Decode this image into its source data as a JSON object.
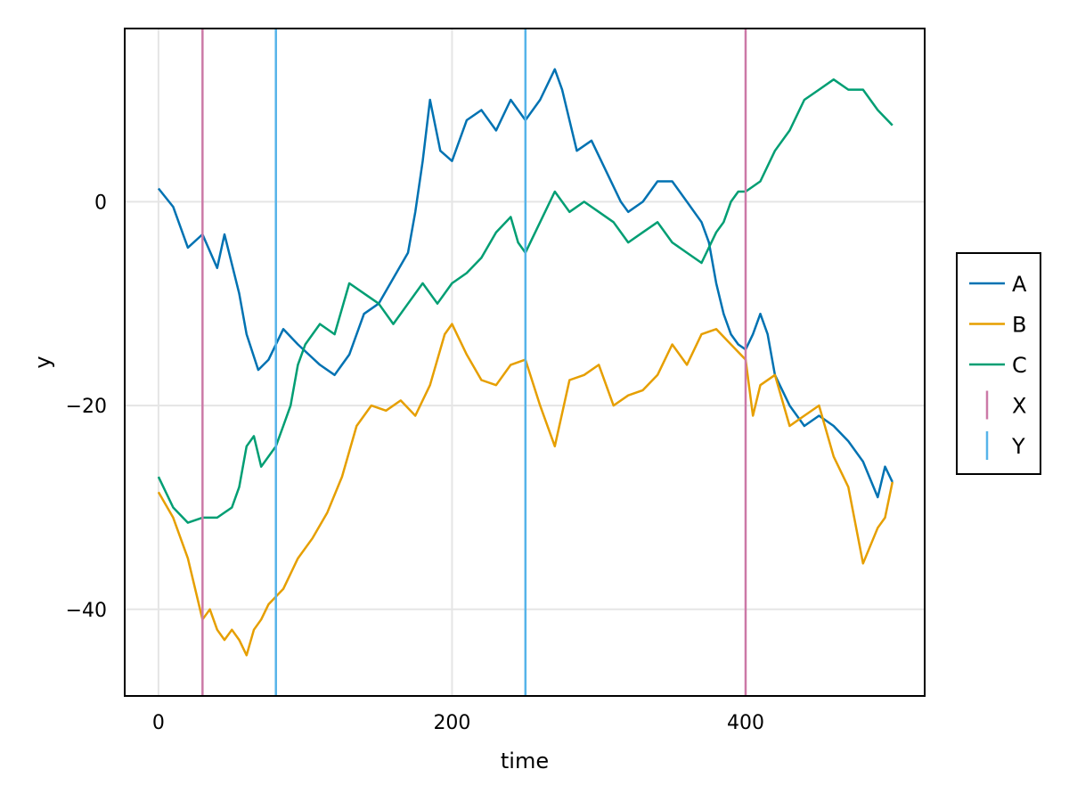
{
  "chart_data": {
    "type": "line",
    "title": "",
    "xlabel": "time",
    "ylabel": "y",
    "xlim": [
      -23,
      522
    ],
    "ylim": [
      -48.5,
      17
    ],
    "xticks": [
      0,
      200,
      400
    ],
    "yticks": [
      0,
      -20,
      -40
    ],
    "xtick_labels": [
      "0",
      "200",
      "400"
    ],
    "ytick_labels": [
      "0",
      "−20",
      "−40"
    ],
    "grid": true,
    "legend_position": "right",
    "series": [
      {
        "name": "A",
        "color": "#0072B2",
        "points": [
          [
            0,
            1.3
          ],
          [
            10,
            -0.5
          ],
          [
            20,
            -4.5
          ],
          [
            30,
            -3.2
          ],
          [
            40,
            -6.5
          ],
          [
            45,
            -3.2
          ],
          [
            55,
            -9
          ],
          [
            60,
            -13
          ],
          [
            68,
            -16.5
          ],
          [
            75,
            -15.5
          ],
          [
            85,
            -12.5
          ],
          [
            95,
            -14
          ],
          [
            110,
            -16
          ],
          [
            120,
            -17
          ],
          [
            130,
            -15
          ],
          [
            140,
            -11
          ],
          [
            150,
            -10
          ],
          [
            160,
            -7.5
          ],
          [
            170,
            -5
          ],
          [
            175,
            -1
          ],
          [
            180,
            4
          ],
          [
            185,
            10
          ],
          [
            192,
            5
          ],
          [
            200,
            4
          ],
          [
            210,
            8
          ],
          [
            220,
            9
          ],
          [
            230,
            7
          ],
          [
            240,
            10
          ],
          [
            250,
            8
          ],
          [
            260,
            10
          ],
          [
            270,
            13
          ],
          [
            275,
            11
          ],
          [
            285,
            5
          ],
          [
            295,
            6
          ],
          [
            305,
            3
          ],
          [
            315,
            0
          ],
          [
            320,
            -1
          ],
          [
            330,
            0
          ],
          [
            340,
            2
          ],
          [
            350,
            2
          ],
          [
            360,
            0
          ],
          [
            370,
            -2
          ],
          [
            375,
            -4
          ],
          [
            380,
            -8
          ],
          [
            385,
            -11
          ],
          [
            390,
            -13
          ],
          [
            395,
            -14
          ],
          [
            400,
            -14.5
          ],
          [
            405,
            -13
          ],
          [
            410,
            -11
          ],
          [
            415,
            -13
          ],
          [
            420,
            -17
          ],
          [
            430,
            -20
          ],
          [
            440,
            -22
          ],
          [
            450,
            -21
          ],
          [
            460,
            -22
          ],
          [
            470,
            -23.5
          ],
          [
            480,
            -25.5
          ],
          [
            490,
            -29
          ],
          [
            495,
            -26
          ],
          [
            500,
            -27.5
          ]
        ]
      },
      {
        "name": "B",
        "color": "#E69F00",
        "points": [
          [
            0,
            -28.5
          ],
          [
            10,
            -31
          ],
          [
            20,
            -35
          ],
          [
            30,
            -41
          ],
          [
            35,
            -40
          ],
          [
            40,
            -42
          ],
          [
            45,
            -43
          ],
          [
            50,
            -42
          ],
          [
            55,
            -43
          ],
          [
            60,
            -44.5
          ],
          [
            65,
            -42
          ],
          [
            70,
            -41
          ],
          [
            75,
            -39.5
          ],
          [
            85,
            -38
          ],
          [
            95,
            -35
          ],
          [
            105,
            -33
          ],
          [
            115,
            -30.5
          ],
          [
            125,
            -27
          ],
          [
            135,
            -22
          ],
          [
            145,
            -20
          ],
          [
            155,
            -20.5
          ],
          [
            165,
            -19.5
          ],
          [
            175,
            -21
          ],
          [
            185,
            -18
          ],
          [
            195,
            -13
          ],
          [
            200,
            -12
          ],
          [
            210,
            -15
          ],
          [
            220,
            -17.5
          ],
          [
            230,
            -18
          ],
          [
            240,
            -16
          ],
          [
            250,
            -15.5
          ],
          [
            260,
            -20
          ],
          [
            270,
            -24
          ],
          [
            280,
            -17.5
          ],
          [
            290,
            -17
          ],
          [
            300,
            -16
          ],
          [
            310,
            -20
          ],
          [
            320,
            -19
          ],
          [
            330,
            -18.5
          ],
          [
            340,
            -17
          ],
          [
            350,
            -14
          ],
          [
            360,
            -16
          ],
          [
            370,
            -13
          ],
          [
            380,
            -12.5
          ],
          [
            390,
            -14
          ],
          [
            400,
            -15.5
          ],
          [
            405,
            -21
          ],
          [
            410,
            -18
          ],
          [
            420,
            -17
          ],
          [
            430,
            -22
          ],
          [
            440,
            -21
          ],
          [
            450,
            -20
          ],
          [
            460,
            -25
          ],
          [
            470,
            -28
          ],
          [
            480,
            -35.5
          ],
          [
            490,
            -32
          ],
          [
            495,
            -31
          ],
          [
            500,
            -27.5
          ]
        ]
      },
      {
        "name": "C",
        "color": "#009E73",
        "points": [
          [
            0,
            -27
          ],
          [
            10,
            -30
          ],
          [
            20,
            -31.5
          ],
          [
            30,
            -31
          ],
          [
            40,
            -31
          ],
          [
            50,
            -30
          ],
          [
            55,
            -28
          ],
          [
            60,
            -24
          ],
          [
            65,
            -23
          ],
          [
            70,
            -26
          ],
          [
            80,
            -24
          ],
          [
            85,
            -22
          ],
          [
            90,
            -20
          ],
          [
            95,
            -16
          ],
          [
            100,
            -14
          ],
          [
            110,
            -12
          ],
          [
            120,
            -13
          ],
          [
            130,
            -8
          ],
          [
            140,
            -9
          ],
          [
            150,
            -10
          ],
          [
            160,
            -12
          ],
          [
            170,
            -10
          ],
          [
            180,
            -8
          ],
          [
            190,
            -10
          ],
          [
            200,
            -8
          ],
          [
            210,
            -7
          ],
          [
            220,
            -5.5
          ],
          [
            230,
            -3
          ],
          [
            240,
            -1.5
          ],
          [
            245,
            -4
          ],
          [
            250,
            -5
          ],
          [
            260,
            -2
          ],
          [
            270,
            1
          ],
          [
            280,
            -1
          ],
          [
            290,
            0
          ],
          [
            300,
            -1
          ],
          [
            310,
            -2
          ],
          [
            320,
            -4
          ],
          [
            330,
            -3
          ],
          [
            340,
            -2
          ],
          [
            350,
            -4
          ],
          [
            360,
            -5
          ],
          [
            370,
            -6
          ],
          [
            380,
            -3
          ],
          [
            385,
            -2
          ],
          [
            390,
            0
          ],
          [
            395,
            1
          ],
          [
            400,
            1
          ],
          [
            410,
            2
          ],
          [
            420,
            5
          ],
          [
            430,
            7
          ],
          [
            440,
            10
          ],
          [
            450,
            11
          ],
          [
            460,
            12
          ],
          [
            470,
            11
          ],
          [
            480,
            11
          ],
          [
            490,
            9
          ],
          [
            500,
            7.5
          ]
        ]
      }
    ],
    "vlines": [
      {
        "name": "X",
        "color": "#CC79A7",
        "x": [
          30,
          400
        ]
      },
      {
        "name": "Y",
        "color": "#56B4E9",
        "x": [
          80,
          250
        ]
      }
    ],
    "legend": [
      {
        "label": "A",
        "kind": "line",
        "color": "#0072B2"
      },
      {
        "label": "B",
        "kind": "line",
        "color": "#E69F00"
      },
      {
        "label": "C",
        "kind": "line",
        "color": "#009E73"
      },
      {
        "label": "X",
        "kind": "vline",
        "color": "#CC79A7"
      },
      {
        "label": "Y",
        "kind": "vline",
        "color": "#56B4E9"
      }
    ]
  }
}
